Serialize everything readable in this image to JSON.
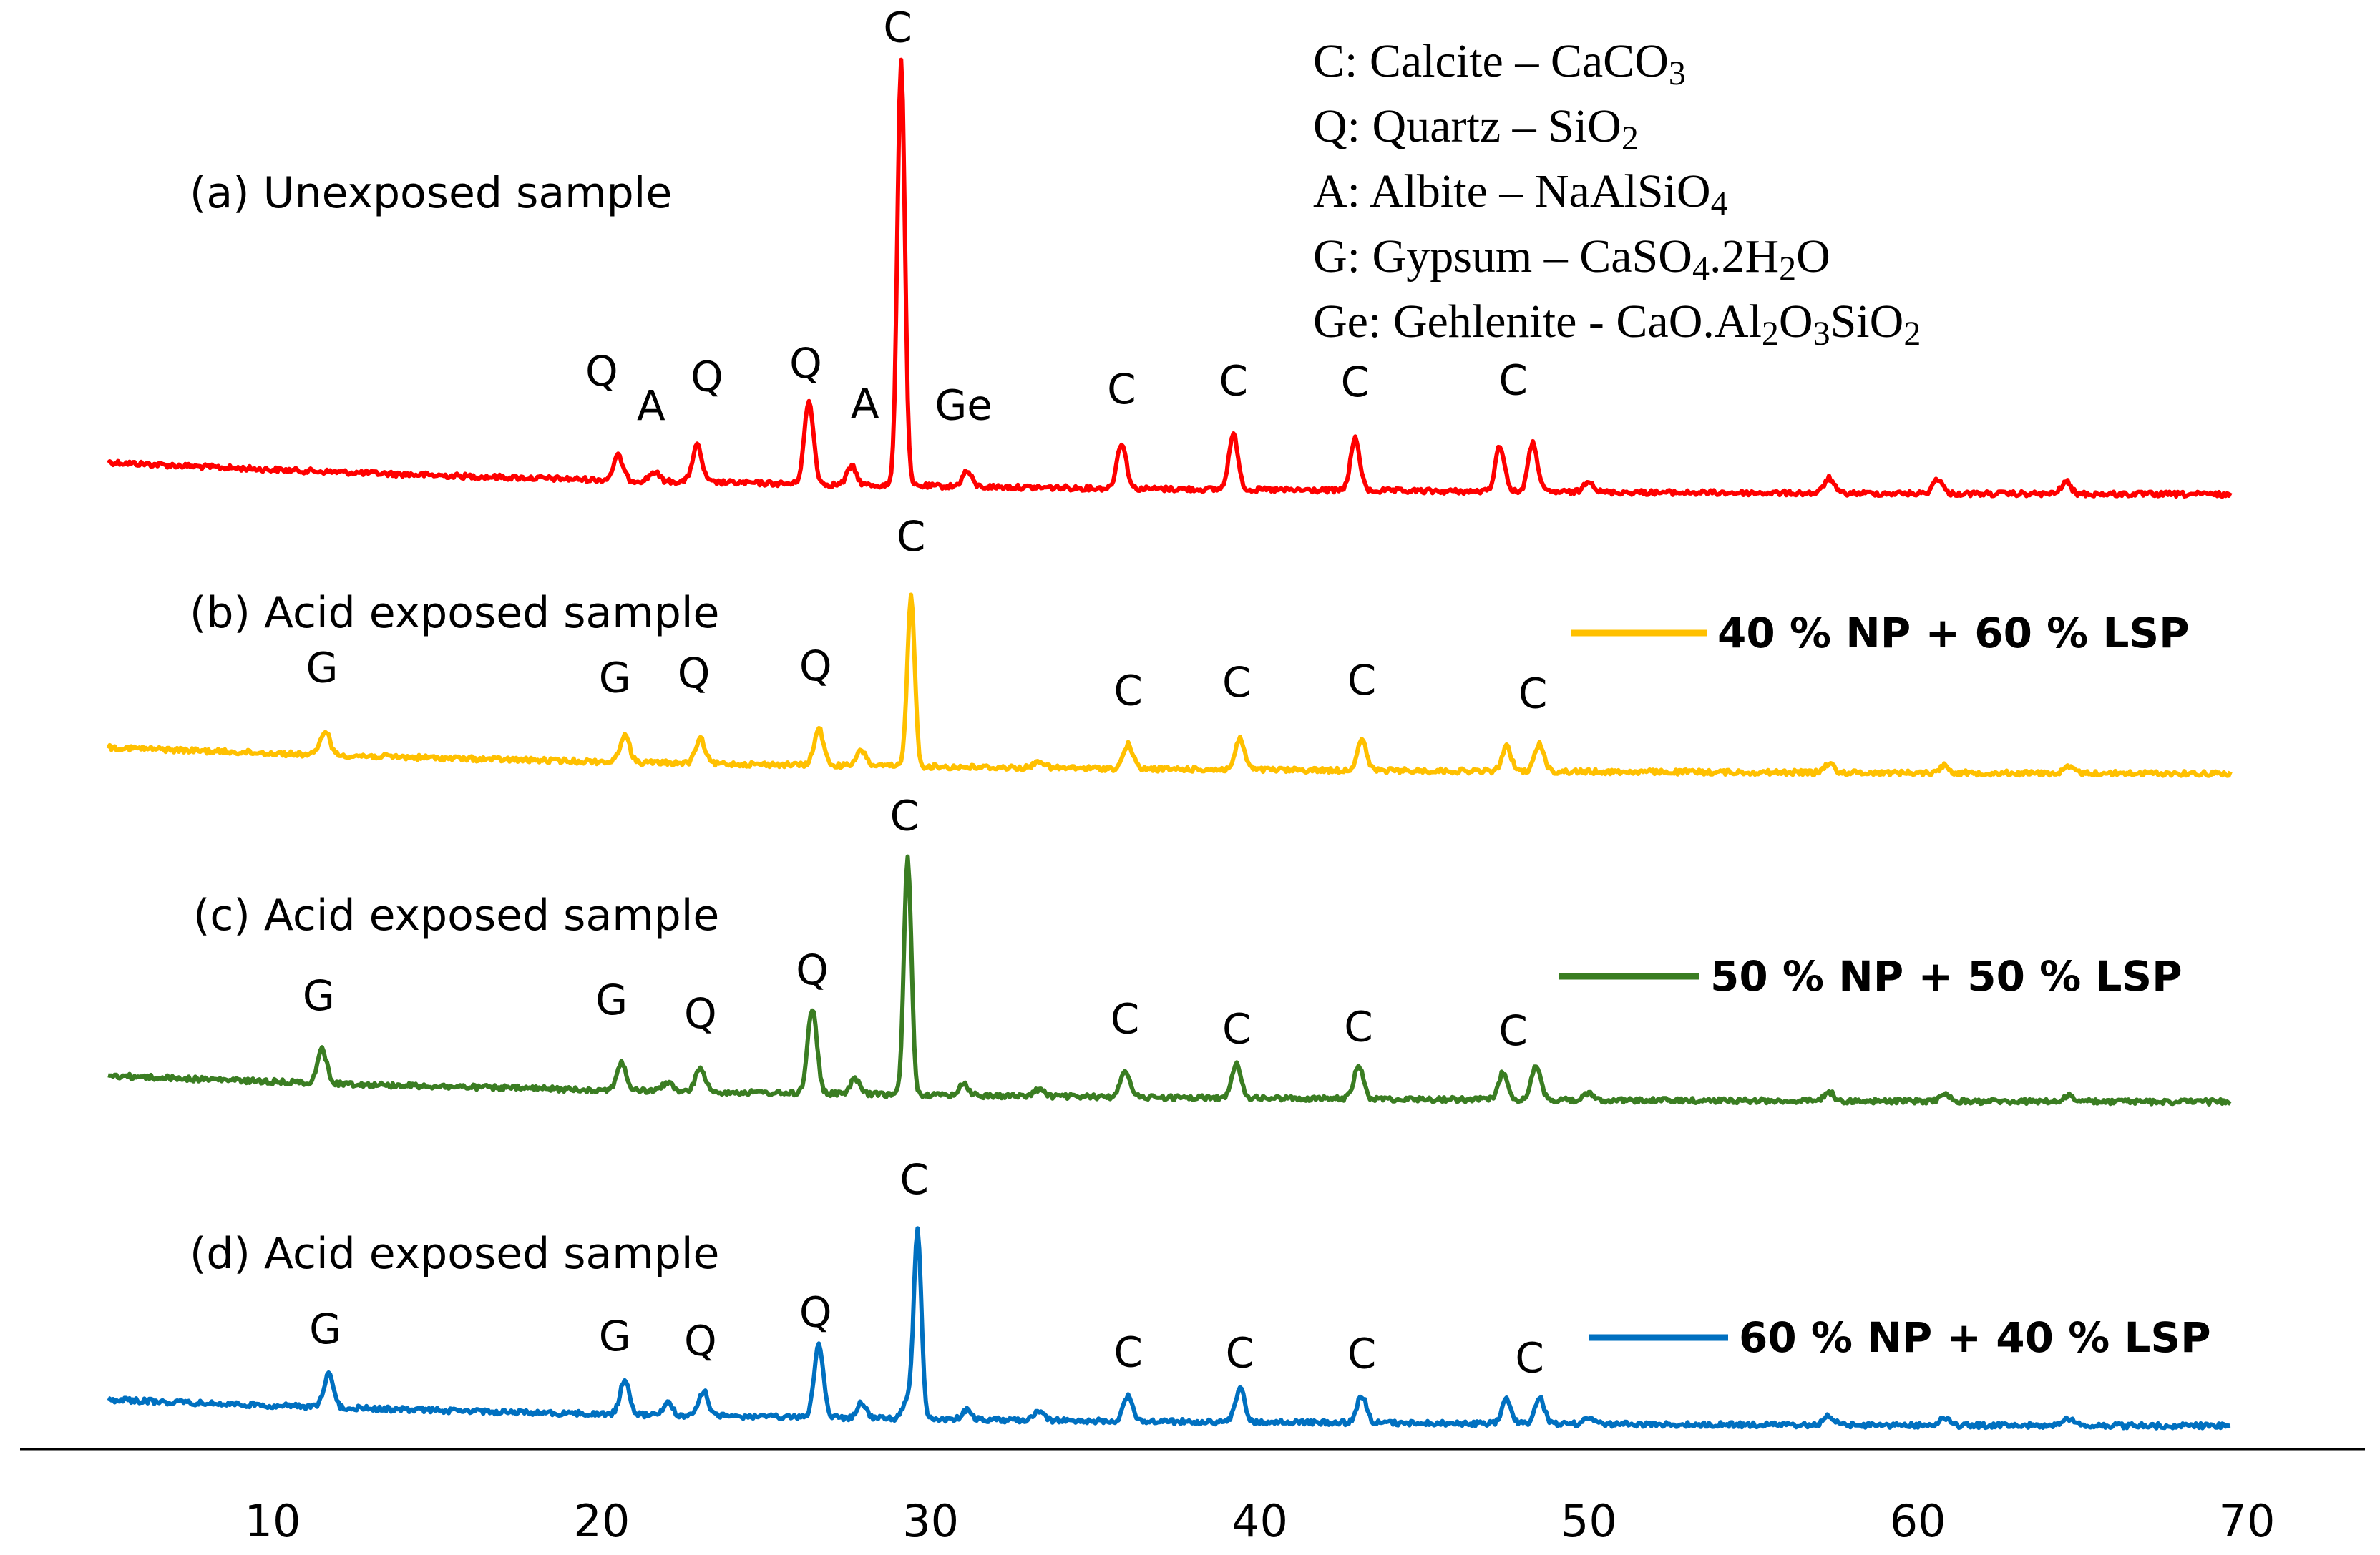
{
  "chart_data": {
    "type": "line",
    "title": "",
    "xlabel": "",
    "ylabel": "",
    "xlim": [
      3,
      71
    ],
    "x_ticks": [
      10,
      20,
      30,
      40,
      50,
      60,
      70
    ],
    "grid": false,
    "phase_legend": [
      {
        "key": "C",
        "text": "C: Calcite – CaCO3"
      },
      {
        "key": "Q",
        "text": "Q: Quartz – SiO2"
      },
      {
        "key": "A",
        "text": "A: Albite – NaAlSiO4"
      },
      {
        "key": "G",
        "text": "G: Gypsum – CaSO4.2H2O"
      },
      {
        "key": "Ge",
        "text": "Ge: Gehlenite -  CaO.Al2O3SiO2"
      }
    ],
    "series": [
      {
        "name": "(a) Unexposed sample",
        "color": "#ff0000",
        "mix_label": "",
        "start": 5.0,
        "end": 69.5,
        "baseline_start": 0.55,
        "baseline_end": 0.02,
        "peaks": [
          {
            "x": 20.5,
            "h": 0.4
          },
          {
            "x": 21.6,
            "h": 0.15
          },
          {
            "x": 22.9,
            "h": 0.6
          },
          {
            "x": 26.3,
            "h": 1.35
          },
          {
            "x": 27.6,
            "h": 0.3
          },
          {
            "x": 29.1,
            "h": 7.0
          },
          {
            "x": 31.1,
            "h": 0.25
          },
          {
            "x": 35.8,
            "h": 0.75
          },
          {
            "x": 39.2,
            "h": 0.9
          },
          {
            "x": 42.9,
            "h": 0.85
          },
          {
            "x": 47.3,
            "h": 0.75
          },
          {
            "x": 48.3,
            "h": 0.8
          },
          {
            "x": 50.0,
            "h": 0.2
          },
          {
            "x": 57.3,
            "h": 0.25
          },
          {
            "x": 60.6,
            "h": 0.25
          },
          {
            "x": 64.5,
            "h": 0.2
          }
        ],
        "labels": [
          {
            "x": 20.0,
            "h": 1.55,
            "text": "Q"
          },
          {
            "x": 21.5,
            "h": 1.0,
            "text": "A"
          },
          {
            "x": 23.2,
            "h": 1.5,
            "text": "Q"
          },
          {
            "x": 26.2,
            "h": 1.75,
            "text": "Q"
          },
          {
            "x": 28.0,
            "h": 1.1,
            "text": "A"
          },
          {
            "x": 29.0,
            "h": 7.3,
            "text": "C"
          },
          {
            "x": 31.0,
            "h": 1.1,
            "text": "Ge"
          },
          {
            "x": 35.8,
            "h": 1.4,
            "text": "C"
          },
          {
            "x": 39.2,
            "h": 1.55,
            "text": "C"
          },
          {
            "x": 42.9,
            "h": 1.55,
            "text": "C"
          },
          {
            "x": 47.7,
            "h": 1.6,
            "text": "C"
          }
        ]
      },
      {
        "name": "(b) Acid exposed sample",
        "color": "#ffc000",
        "mix_label": "40 % NP + 60 % LSP",
        "start": 5.0,
        "end": 69.5,
        "baseline_start": 0.45,
        "baseline_end": 0.02,
        "peaks": [
          {
            "x": 11.6,
            "h": 0.4
          },
          {
            "x": 20.7,
            "h": 0.45
          },
          {
            "x": 23.0,
            "h": 0.4
          },
          {
            "x": 26.6,
            "h": 0.6
          },
          {
            "x": 27.9,
            "h": 0.25
          },
          {
            "x": 29.4,
            "h": 2.8
          },
          {
            "x": 33.3,
            "h": 0.12
          },
          {
            "x": 36.0,
            "h": 0.4
          },
          {
            "x": 39.4,
            "h": 0.5
          },
          {
            "x": 43.1,
            "h": 0.5
          },
          {
            "x": 47.5,
            "h": 0.4
          },
          {
            "x": 48.5,
            "h": 0.45
          },
          {
            "x": 57.3,
            "h": 0.15
          },
          {
            "x": 60.8,
            "h": 0.12
          },
          {
            "x": 64.6,
            "h": 0.1
          }
        ],
        "labels": [
          {
            "x": 11.5,
            "h": 1.2,
            "text": "G"
          },
          {
            "x": 20.4,
            "h": 1.15,
            "text": "G"
          },
          {
            "x": 22.8,
            "h": 1.25,
            "text": "Q"
          },
          {
            "x": 26.5,
            "h": 1.4,
            "text": "Q"
          },
          {
            "x": 29.4,
            "h": 3.55,
            "text": "C"
          },
          {
            "x": 36.0,
            "h": 1.05,
            "text": "C"
          },
          {
            "x": 39.3,
            "h": 1.2,
            "text": "C"
          },
          {
            "x": 43.1,
            "h": 1.25,
            "text": "C"
          },
          {
            "x": 48.3,
            "h": 1.05,
            "text": "C"
          }
        ]
      },
      {
        "name": "(c) Acid exposed  sample",
        "color": "#3a7d22",
        "mix_label": "50 % NP + 50 % LSP",
        "start": 5.0,
        "end": 69.5,
        "baseline_start": 0.45,
        "baseline_end": 0.02,
        "peaks": [
          {
            "x": 11.5,
            "h": 0.55
          },
          {
            "x": 20.6,
            "h": 0.45
          },
          {
            "x": 22.0,
            "h": 0.15
          },
          {
            "x": 23.0,
            "h": 0.4
          },
          {
            "x": 26.4,
            "h": 1.4
          },
          {
            "x": 27.7,
            "h": 0.25
          },
          {
            "x": 29.3,
            "h": 3.9
          },
          {
            "x": 31.0,
            "h": 0.2
          },
          {
            "x": 33.3,
            "h": 0.12
          },
          {
            "x": 35.9,
            "h": 0.45
          },
          {
            "x": 39.3,
            "h": 0.55
          },
          {
            "x": 43.0,
            "h": 0.55
          },
          {
            "x": 47.4,
            "h": 0.45
          },
          {
            "x": 48.4,
            "h": 0.55
          },
          {
            "x": 50.0,
            "h": 0.1
          },
          {
            "x": 57.3,
            "h": 0.15
          },
          {
            "x": 60.8,
            "h": 0.12
          },
          {
            "x": 64.6,
            "h": 0.1
          }
        ],
        "labels": [
          {
            "x": 11.4,
            "h": 1.2,
            "text": "G"
          },
          {
            "x": 20.3,
            "h": 1.25,
            "text": "G"
          },
          {
            "x": 23.0,
            "h": 1.05,
            "text": "Q"
          },
          {
            "x": 26.4,
            "h": 1.8,
            "text": "Q"
          },
          {
            "x": 29.2,
            "h": 4.35,
            "text": "C"
          },
          {
            "x": 35.9,
            "h": 1.05,
            "text": "C"
          },
          {
            "x": 39.3,
            "h": 0.9,
            "text": "C"
          },
          {
            "x": 43.0,
            "h": 0.95,
            "text": "C"
          },
          {
            "x": 47.7,
            "h": 0.9,
            "text": "C"
          }
        ]
      },
      {
        "name": "(d) Acid exposed sample",
        "color": "#0070c0",
        "mix_label": "60 % NP + 40 % LSP",
        "start": 5.0,
        "end": 69.5,
        "baseline_start": 0.45,
        "baseline_end": 0.02,
        "peaks": [
          {
            "x": 11.7,
            "h": 0.55
          },
          {
            "x": 20.7,
            "h": 0.55
          },
          {
            "x": 22.0,
            "h": 0.2
          },
          {
            "x": 23.1,
            "h": 0.4
          },
          {
            "x": 26.6,
            "h": 1.2
          },
          {
            "x": 27.9,
            "h": 0.25
          },
          {
            "x": 29.3,
            "h": 0.3
          },
          {
            "x": 29.6,
            "h": 3.1
          },
          {
            "x": 31.1,
            "h": 0.15
          },
          {
            "x": 33.3,
            "h": 0.15
          },
          {
            "x": 36.0,
            "h": 0.4
          },
          {
            "x": 39.4,
            "h": 0.55
          },
          {
            "x": 43.1,
            "h": 0.45
          },
          {
            "x": 47.5,
            "h": 0.4
          },
          {
            "x": 48.5,
            "h": 0.45
          },
          {
            "x": 50.0,
            "h": 0.1
          },
          {
            "x": 57.3,
            "h": 0.15
          },
          {
            "x": 60.8,
            "h": 0.12
          },
          {
            "x": 64.6,
            "h": 0.12
          }
        ],
        "labels": [
          {
            "x": 11.6,
            "h": 1.05,
            "text": "G"
          },
          {
            "x": 20.4,
            "h": 1.05,
            "text": "G"
          },
          {
            "x": 23.0,
            "h": 1.0,
            "text": "Q"
          },
          {
            "x": 26.5,
            "h": 1.5,
            "text": "Q"
          },
          {
            "x": 29.5,
            "h": 3.7,
            "text": "C"
          },
          {
            "x": 36.0,
            "h": 0.9,
            "text": "C"
          },
          {
            "x": 39.4,
            "h": 0.9,
            "text": "C"
          },
          {
            "x": 43.1,
            "h": 0.9,
            "text": "C"
          },
          {
            "x": 48.2,
            "h": 0.85,
            "text": "C"
          }
        ]
      }
    ]
  }
}
